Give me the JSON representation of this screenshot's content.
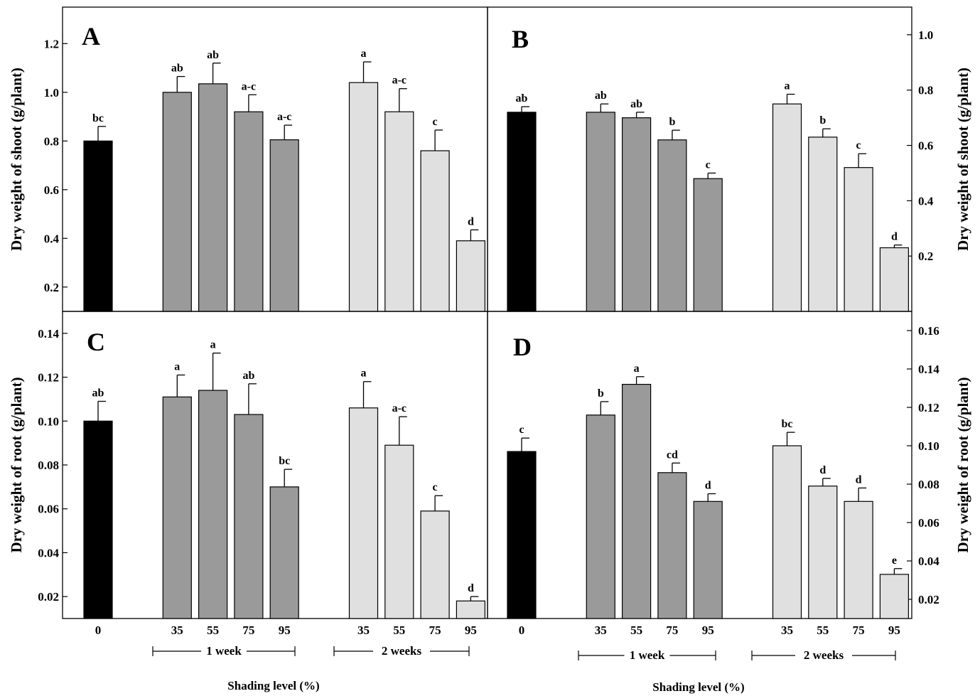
{
  "colors": {
    "control": "#000000",
    "one_week": "#9a9a9a",
    "two_weeks": "#e0e0e0"
  },
  "x_axis": {
    "categories": [
      "0",
      "35",
      "55",
      "75",
      "95",
      "35",
      "55",
      "75",
      "95"
    ],
    "group_labels": [
      "1 week",
      "2 weeks"
    ],
    "title": "Shading level (%)"
  },
  "chart_data": [
    {
      "panel": "A",
      "type": "bar",
      "ylabel": "Dry weight of shoot (g/plant)",
      "ylim": [
        0.1,
        1.35
      ],
      "yticks": [
        "0.2",
        "0.4",
        "0.6",
        "0.8",
        "1.0",
        "1.2"
      ],
      "values": [
        0.8,
        1.0,
        1.035,
        0.92,
        0.805,
        1.04,
        0.92,
        0.76,
        0.39
      ],
      "errors": [
        0.06,
        0.065,
        0.085,
        0.07,
        0.06,
        0.085,
        0.095,
        0.085,
        0.045
      ],
      "letters": [
        "bc",
        "ab",
        "ab",
        "a-c",
        "a-c",
        "a",
        "a-c",
        "c",
        "d"
      ]
    },
    {
      "panel": "B",
      "type": "bar",
      "ylabel": "Dry weight of shoot (g/plant)",
      "ylim": [
        0.0,
        1.1
      ],
      "yticks": [
        "0.2",
        "0.4",
        "0.6",
        "0.8",
        "1.0"
      ],
      "values": [
        0.72,
        0.72,
        0.7,
        0.62,
        0.48,
        0.75,
        0.63,
        0.52,
        0.23
      ],
      "errors": [
        0.02,
        0.03,
        0.02,
        0.035,
        0.02,
        0.035,
        0.03,
        0.05,
        0.01
      ],
      "letters": [
        "ab",
        "ab",
        "ab",
        "b",
        "c",
        "a",
        "b",
        "c",
        "d"
      ]
    },
    {
      "panel": "C",
      "type": "bar",
      "ylabel": "Dry weight of root (g/plant)",
      "ylim": [
        0.01,
        0.15
      ],
      "yticks": [
        "0.02",
        "0.04",
        "0.06",
        "0.08",
        "0.10",
        "0.12",
        "0.14"
      ],
      "values": [
        0.1,
        0.111,
        0.114,
        0.103,
        0.07,
        0.106,
        0.089,
        0.059,
        0.018
      ],
      "errors": [
        0.009,
        0.01,
        0.017,
        0.014,
        0.008,
        0.012,
        0.013,
        0.007,
        0.002
      ],
      "letters": [
        "ab",
        "a",
        "a",
        "ab",
        "bc",
        "a",
        "a-c",
        "c",
        "d"
      ]
    },
    {
      "panel": "D",
      "type": "bar",
      "ylabel": "Dry weight of root (g/plant)",
      "ylim": [
        0.01,
        0.17
      ],
      "yticks": [
        "0.02",
        "0.04",
        "0.06",
        "0.08",
        "0.10",
        "0.12",
        "0.14",
        "0.16"
      ],
      "values": [
        0.097,
        0.116,
        0.132,
        0.086,
        0.071,
        0.1,
        0.079,
        0.071,
        0.033
      ],
      "errors": [
        0.007,
        0.007,
        0.004,
        0.005,
        0.004,
        0.007,
        0.004,
        0.007,
        0.003
      ],
      "letters": [
        "c",
        "b",
        "a",
        "cd",
        "d",
        "bc",
        "d",
        "d",
        "e"
      ]
    }
  ]
}
